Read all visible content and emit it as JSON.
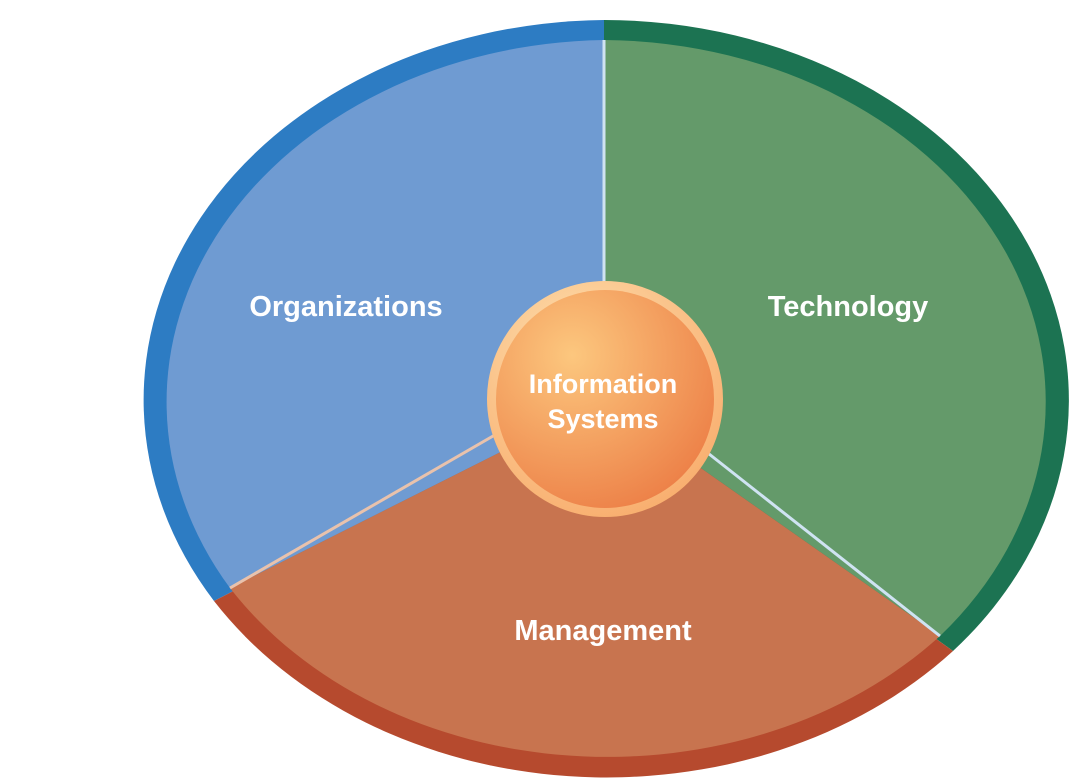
{
  "diagram": {
    "center": {
      "line1": "Information",
      "line2": "Systems"
    },
    "segments": [
      {
        "key": "organizations",
        "label": "Organizations",
        "fill": "#6f9bd2",
        "rim": "#2d7cc3"
      },
      {
        "key": "technology",
        "label": "Technology",
        "fill": "#649a6a",
        "rim": "#1c7352"
      },
      {
        "key": "management",
        "label": "Management",
        "fill": "#c8744f",
        "rim": "#b64a2e"
      }
    ],
    "colors": {
      "hub_light": "#fcc77e",
      "hub_dark": "#ec7d45",
      "hub_ring": "#f8aa69",
      "divider": "#cfe3f2"
    }
  }
}
